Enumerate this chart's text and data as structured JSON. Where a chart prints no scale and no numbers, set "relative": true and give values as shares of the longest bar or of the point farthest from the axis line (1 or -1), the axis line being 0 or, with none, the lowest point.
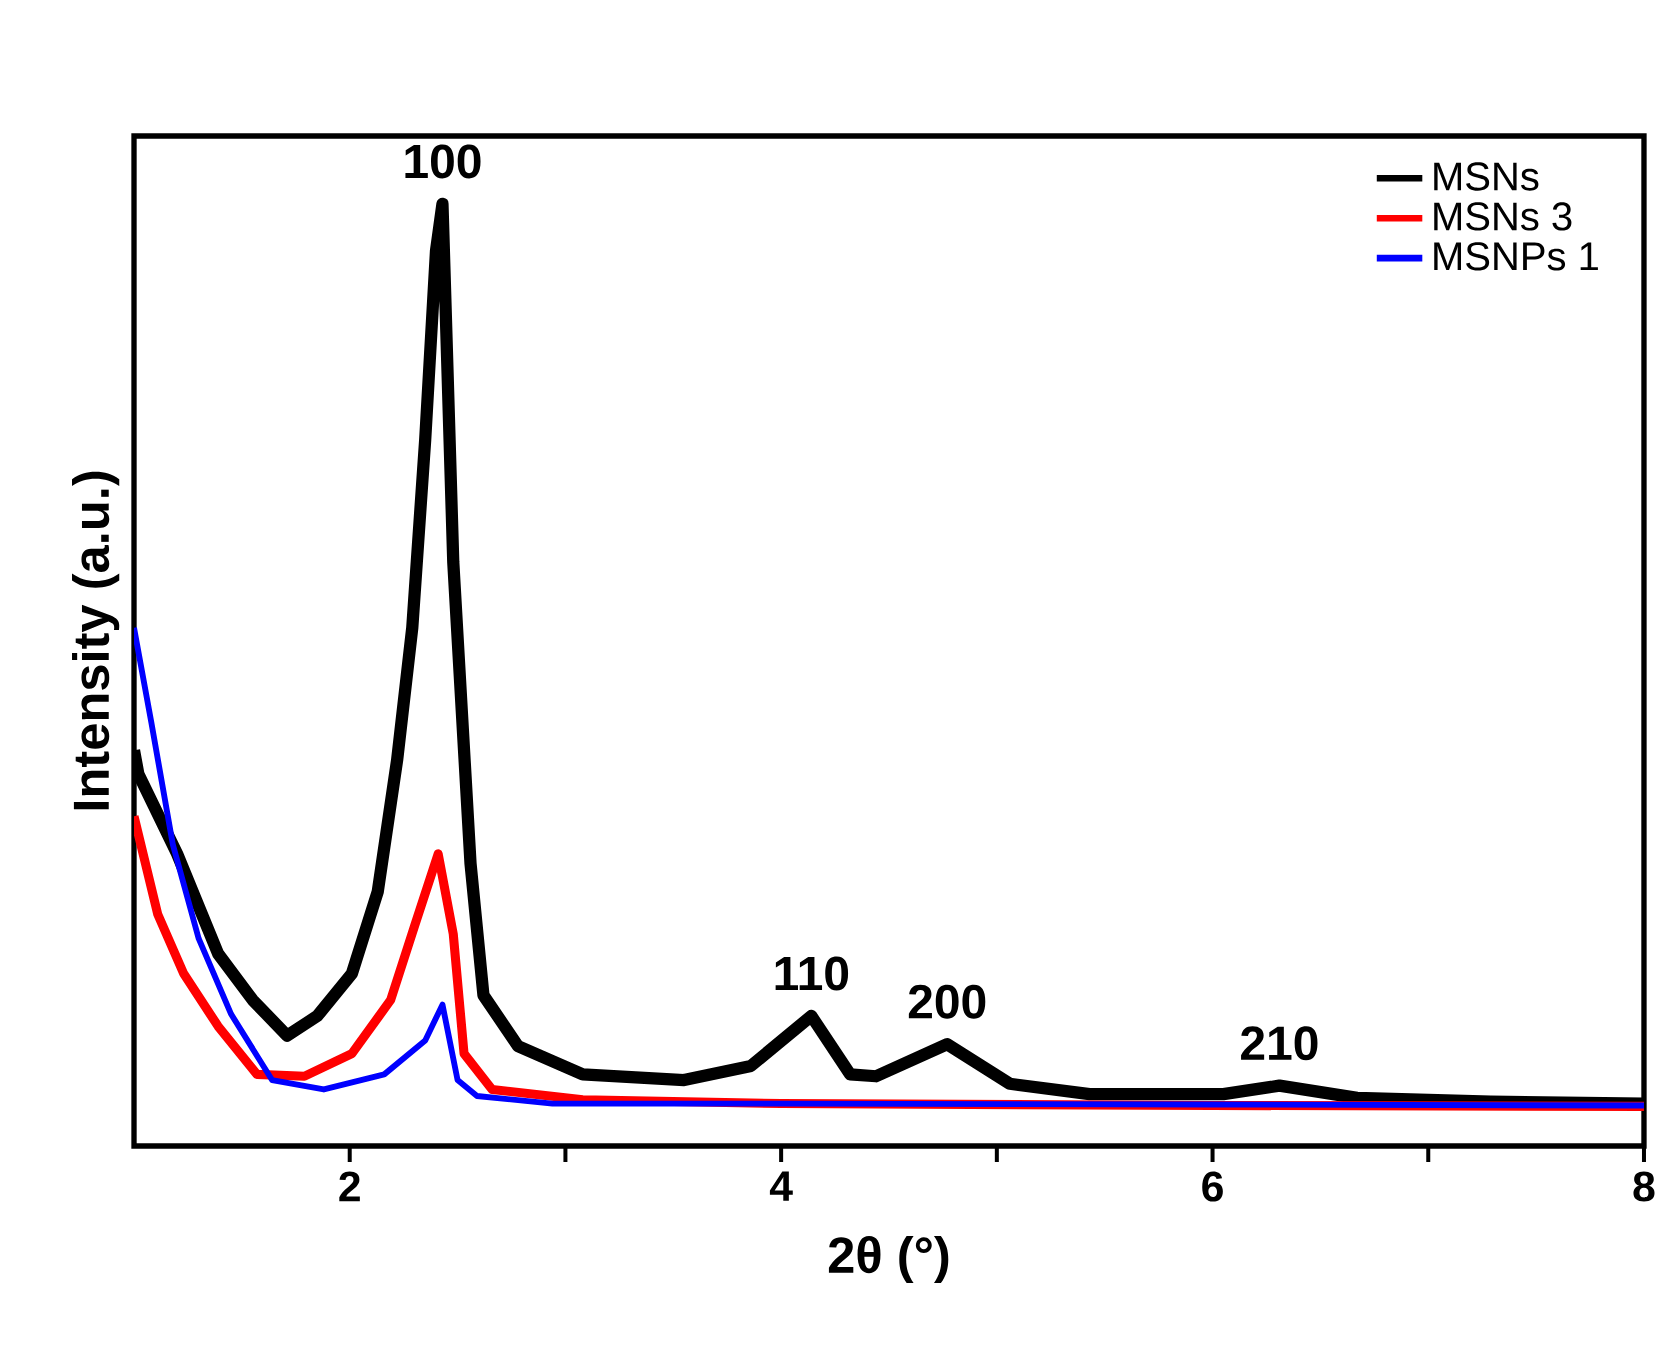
{
  "chart_data": {
    "type": "line",
    "relative": true,
    "xlabel": "2θ (°)",
    "ylabel": "Intensity (a.u.)",
    "xlim": [
      1,
      8
    ],
    "xticks": [
      2,
      {
        "value": 3,
        "label": null
      },
      4,
      {
        "value": 5,
        "label": null
      },
      6,
      {
        "value": 7,
        "label": null
      },
      8
    ],
    "legend": "top right",
    "grid": false,
    "marker": "none",
    "line_style": "solid",
    "annotations": [
      {
        "text": "100",
        "x": 2.43,
        "y": 1.0
      },
      {
        "text": "110",
        "x": 4.14,
        "y": 0.138
      },
      {
        "text": "200",
        "x": 4.77,
        "y": 0.108
      },
      {
        "text": "210",
        "x": 6.31,
        "y": 0.064
      }
    ],
    "series": [
      {
        "name": "MSNs",
        "color": "#000000",
        "x": [
          1.0,
          1.02,
          1.2,
          1.39,
          1.55,
          1.71,
          1.85,
          2.01,
          2.13,
          2.22,
          2.29,
          2.35,
          2.4,
          2.43,
          2.48,
          2.56,
          2.62,
          2.78,
          3.08,
          3.55,
          3.86,
          4.14,
          4.32,
          4.44,
          4.77,
          5.06,
          5.43,
          6.05,
          6.31,
          6.67,
          7.29,
          8.0
        ],
        "values": [
          0.42,
          0.395,
          0.31,
          0.204,
          0.155,
          0.117,
          0.138,
          0.183,
          0.27,
          0.41,
          0.55,
          0.75,
          0.95,
          1.0,
          0.62,
          0.3,
          0.16,
          0.106,
          0.076,
          0.07,
          0.085,
          0.138,
          0.076,
          0.074,
          0.108,
          0.066,
          0.055,
          0.055,
          0.064,
          0.051,
          0.047,
          0.045
        ]
      },
      {
        "name": "MSNs 3",
        "color": "#ff0000",
        "x": [
          1.0,
          1.11,
          1.23,
          1.39,
          1.57,
          1.79,
          2.01,
          2.19,
          2.3,
          2.41,
          2.48,
          2.53,
          2.66,
          3.08,
          4.0,
          6.0,
          8.0
        ],
        "values": [
          0.35,
          0.246,
          0.183,
          0.127,
          0.076,
          0.074,
          0.098,
          0.155,
          0.233,
          0.31,
          0.225,
          0.098,
          0.06,
          0.049,
          0.045,
          0.043,
          0.042
        ]
      },
      {
        "name": "MSNPs 1",
        "color": "#0000ff",
        "x": [
          1.0,
          1.08,
          1.18,
          1.3,
          1.45,
          1.64,
          1.88,
          2.16,
          2.35,
          2.43,
          2.5,
          2.59,
          2.94,
          4.0,
          6.0,
          8.0
        ],
        "values": [
          0.55,
          0.45,
          0.32,
          0.22,
          0.14,
          0.07,
          0.06,
          0.076,
          0.112,
          0.15,
          0.07,
          0.053,
          0.045,
          0.045,
          0.044,
          0.043
        ]
      }
    ]
  }
}
